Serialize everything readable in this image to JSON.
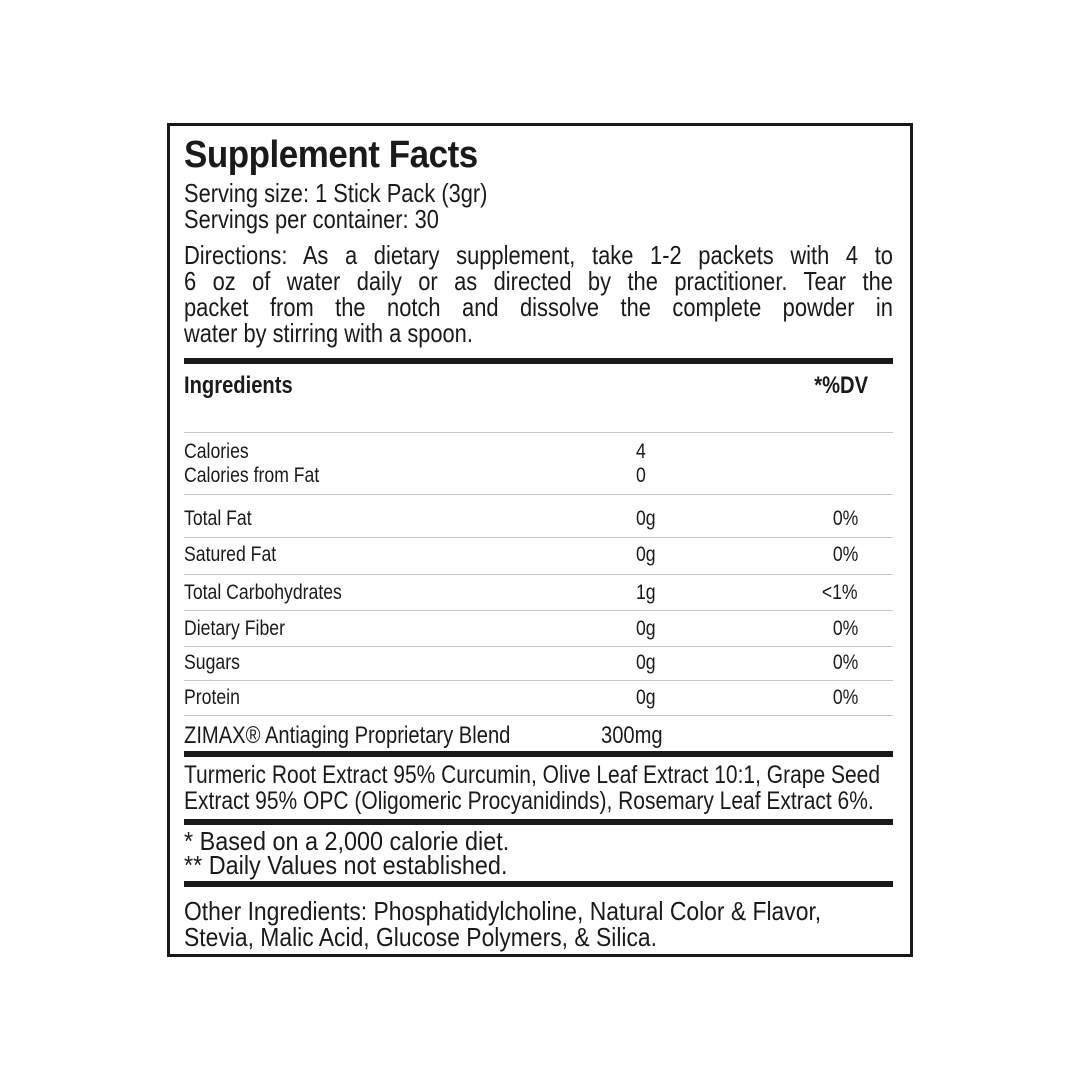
{
  "title": "Supplement Facts",
  "serving_size": "Serving size: 1 Stick Pack (3gr)",
  "servings_per_container": "Servings per container: 30",
  "directions_lines": [
    "Directions: As a dietary supplement, take 1-2 packets with 4 to",
    "6 oz of water daily or as directed by the practitioner. Tear the",
    "packet from the notch and dissolve the complete powder in",
    "water by stirring with a spoon."
  ],
  "table": {
    "header_ingredients": "Ingredients",
    "header_dv": "*%DV",
    "calories": {
      "label": "Calories",
      "amount": "4"
    },
    "calories_from_fat": {
      "label": "Calories from Fat",
      "amount": "0"
    },
    "rows": [
      {
        "label": "Total Fat",
        "amount": "0g",
        "dv": "0%"
      },
      {
        "label": "Satured Fat",
        "amount": "0g",
        "dv": "0%"
      },
      {
        "label": "Total Carbohydrates",
        "amount": "1g",
        "dv": "<1%"
      },
      {
        "label": "Dietary Fiber",
        "amount": "0g",
        "dv": "0%"
      },
      {
        "label": "Sugars",
        "amount": "0g",
        "dv": "0%"
      },
      {
        "label": "Protein",
        "amount": "0g",
        "dv": "0%"
      }
    ],
    "blend": {
      "label": "ZIMAX® Antiaging Proprietary Blend",
      "amount": "300mg"
    }
  },
  "blend_ingredients_lines": [
    "Turmeric Root Extract 95% Curcumin, Olive Leaf Extract 10:1, Grape Seed",
    "Extract 95% OPC (Oligomeric Procyanidinds), Rosemary Leaf Extract  6%."
  ],
  "footnotes": [
    "* Based on a 2,000 calorie diet.",
    "** Daily Values not established."
  ],
  "other_ingredients_lines": [
    "Other Ingredients: Phosphatidylcholine, Natural Color & Flavor,",
    "Stevia, Malic Acid, Glucose Polymers, & Silica."
  ],
  "colors": {
    "text": "#1a1a1a",
    "rule": "#c8c8c8"
  }
}
